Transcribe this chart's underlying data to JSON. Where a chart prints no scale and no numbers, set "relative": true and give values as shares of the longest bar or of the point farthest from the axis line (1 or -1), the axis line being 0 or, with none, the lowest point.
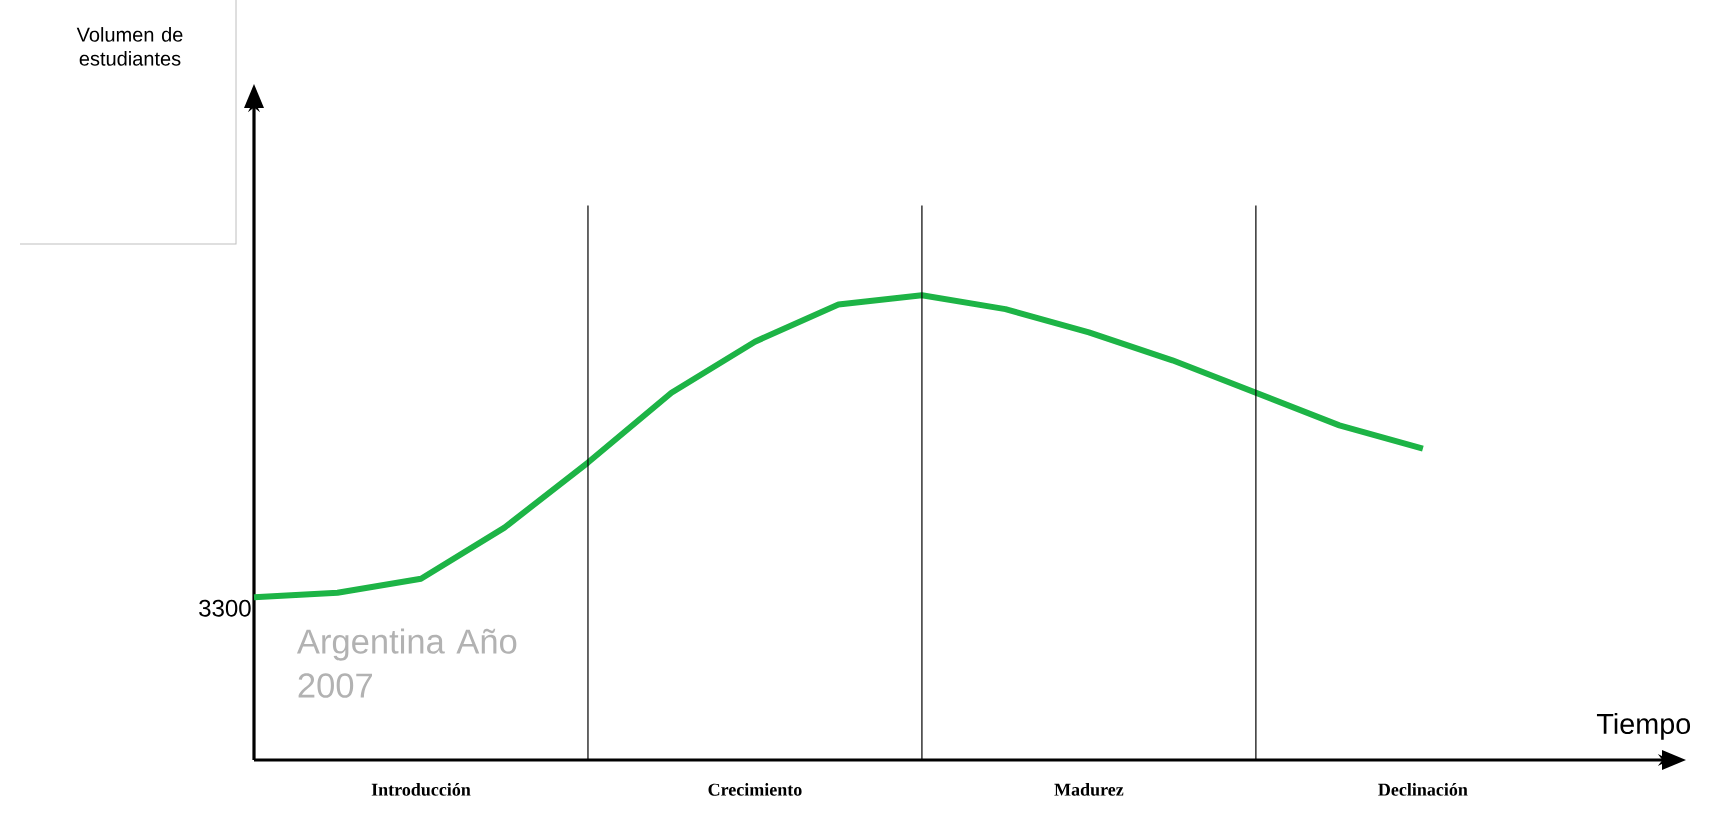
{
  "chart_data": {
    "type": "line",
    "relative": true,
    "xlabel": "Tiempo",
    "grid": "x",
    "categories": [
      null,
      null,
      "Introducción",
      null,
      null,
      null,
      "Crecimiento",
      null,
      null,
      null,
      "Madurez",
      null,
      null,
      null,
      "Declinación",
      null,
      null
    ],
    "series": [
      {
        "color": "#1db446",
        "values": [
          0.35,
          0.36,
          0.39,
          0.5,
          0.64,
          0.79,
          0.9,
          0.98,
          1.0,
          0.97,
          0.92,
          0.86,
          0.79,
          0.72,
          0.67,
          null,
          null
        ]
      }
    ],
    "annotations": [
      "Volumen de estudiantes",
      "3300",
      "Argentina Año 2007"
    ]
  }
}
